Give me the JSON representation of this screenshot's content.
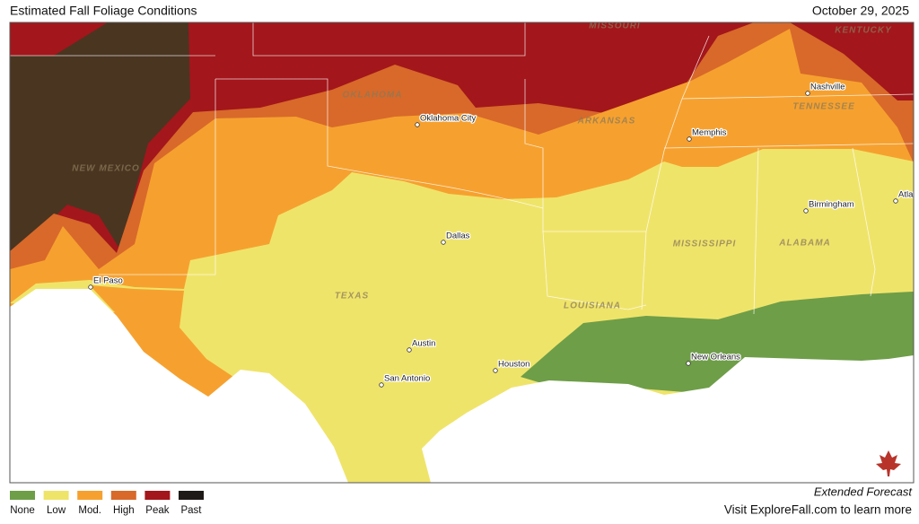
{
  "header": {
    "title": "Estimated Fall Foliage Conditions",
    "date": "October 29, 2025"
  },
  "states": [
    {
      "label": "MISSOURI"
    },
    {
      "label": "KENTUCKY"
    },
    {
      "label": "OKLAHOMA"
    },
    {
      "label": "ARKANSAS"
    },
    {
      "label": "TENNESSEE"
    },
    {
      "label": "NEW MEXICO"
    },
    {
      "label": "TEXAS"
    },
    {
      "label": "MISSISSIPPI"
    },
    {
      "label": "ALABAMA"
    },
    {
      "label": "LOUISIANA"
    }
  ],
  "cities": [
    {
      "label": "Oklahoma City"
    },
    {
      "label": "Nashville"
    },
    {
      "label": "Memphis"
    },
    {
      "label": "Dallas"
    },
    {
      "label": "El Paso"
    },
    {
      "label": "Austin"
    },
    {
      "label": "San Antonio"
    },
    {
      "label": "Houston"
    },
    {
      "label": "Birmingham"
    },
    {
      "label": "New Orleans"
    },
    {
      "label": "Atlanta"
    }
  ],
  "legend": [
    {
      "label": "None",
      "color": "#6e9e48"
    },
    {
      "label": "Low",
      "color": "#efe46a"
    },
    {
      "label": "Mod.",
      "color": "#f6a12f"
    },
    {
      "label": "High",
      "color": "#d8692a"
    },
    {
      "label": "Peak",
      "color": "#a3161b"
    },
    {
      "label": "Past",
      "color": "#1e1a17"
    }
  ],
  "footer": {
    "line1": "Extended Forecast",
    "line2": "Visit ExploreFall.com to learn more"
  }
}
